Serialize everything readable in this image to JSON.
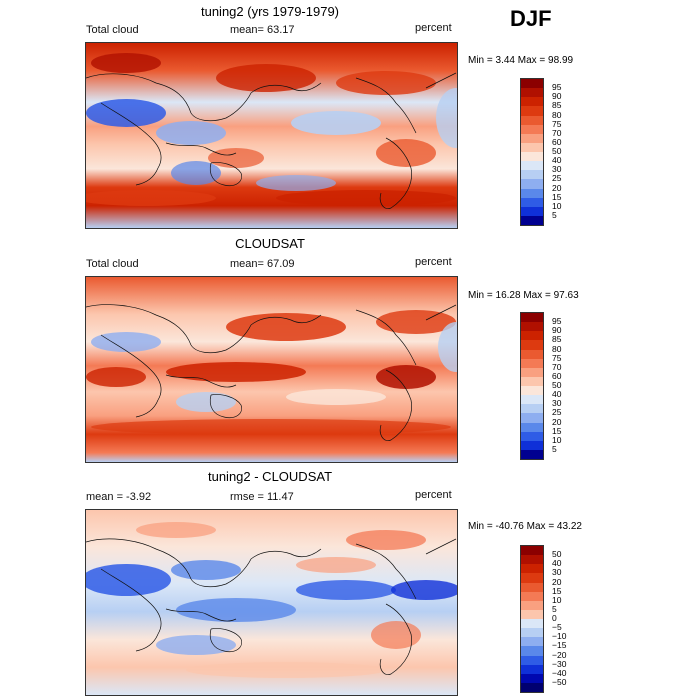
{
  "season": "DJF",
  "panels": [
    {
      "title": "tuning2 (yrs 1979-1979)",
      "left_label": "Total cloud",
      "center_label": "mean=  63.17",
      "right_label": "percent",
      "minmax": "Min =   3.44 Max =  98.99"
    },
    {
      "title": "CLOUDSAT",
      "left_label": "Total cloud",
      "center_label": "mean=  67.09",
      "right_label": "percent",
      "minmax": "Min =  16.28 Max =  97.63"
    },
    {
      "title": "tuning2 - CLOUDSAT",
      "left_label": "mean =  -3.92",
      "center_label": "rmse =  11.47",
      "right_label": "percent",
      "minmax": "Min = -40.76 Max =  43.22"
    }
  ],
  "colorbar_abs": {
    "ticks": [
      "95",
      "90",
      "85",
      "80",
      "75",
      "70",
      "60",
      "50",
      "40",
      "30",
      "25",
      "20",
      "15",
      "10",
      "5"
    ],
    "colors": [
      "#8b0000",
      "#b01000",
      "#cc2200",
      "#dd3a10",
      "#ea5a30",
      "#f47a55",
      "#f9a080",
      "#fcc6ad",
      "#fbe6da",
      "#dbe7f7",
      "#b7cff3",
      "#8eaef0",
      "#5a88ea",
      "#2f5ce6",
      "#0f30d8",
      "#000090"
    ]
  },
  "colorbar_diff": {
    "ticks": [
      "50",
      "40",
      "30",
      "20",
      "15",
      "10",
      "5",
      "0",
      "−5",
      "−10",
      "−15",
      "−20",
      "−30",
      "−40",
      "−50"
    ],
    "colors": [
      "#8b0000",
      "#b01000",
      "#cc2200",
      "#dd3a10",
      "#ea5a30",
      "#f47a55",
      "#f9a080",
      "#fcc6ad",
      "#dbe7f7",
      "#b7cff3",
      "#8eaef0",
      "#5a88ea",
      "#2f5ce6",
      "#0f30d8",
      "#0008b0",
      "#000070"
    ]
  }
}
